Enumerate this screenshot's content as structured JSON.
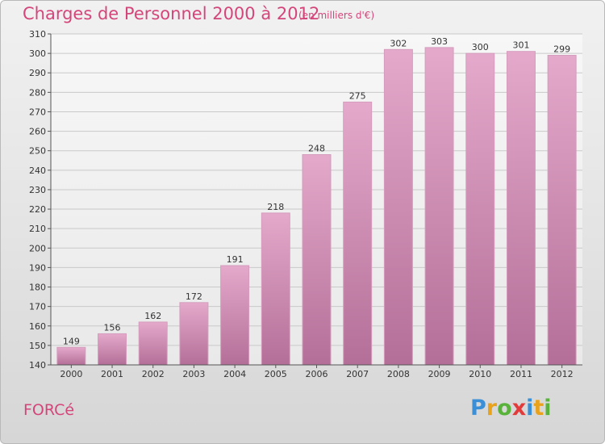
{
  "header": {
    "title": "Charges de Personnel 2000 à 2012",
    "subtitle": "(en milliers d'€)"
  },
  "place": "FORCé",
  "logo": {
    "text": "Proxiti",
    "letters": [
      {
        "ch": "P",
        "color": "#3b8fd6"
      },
      {
        "ch": "r",
        "color": "#e8a21c"
      },
      {
        "ch": "o",
        "color": "#59b33b"
      },
      {
        "ch": "x",
        "color": "#e23b3b"
      },
      {
        "ch": "i",
        "color": "#3b8fd6"
      },
      {
        "ch": "t",
        "color": "#e8a21c"
      },
      {
        "ch": "i",
        "color": "#59b33b"
      }
    ]
  },
  "chart_data": {
    "type": "bar",
    "title": "Charges de Personnel 2000 à 2012",
    "subtitle": "(en milliers d'€)",
    "categories": [
      "2000",
      "2001",
      "2002",
      "2003",
      "2004",
      "2005",
      "2006",
      "2007",
      "2008",
      "2009",
      "2010",
      "2011",
      "2012"
    ],
    "values": [
      149,
      156,
      162,
      172,
      191,
      218,
      248,
      275,
      302,
      303,
      300,
      301,
      299
    ],
    "ylim": [
      140,
      310
    ],
    "yticks": [
      140,
      150,
      160,
      170,
      180,
      190,
      200,
      210,
      220,
      230,
      240,
      250,
      260,
      270,
      280,
      290,
      300,
      310
    ],
    "grid": true,
    "bar_color_top": "#e4a9cb",
    "bar_color_bottom": "#b46f98",
    "xlabel": "",
    "ylabel": ""
  }
}
